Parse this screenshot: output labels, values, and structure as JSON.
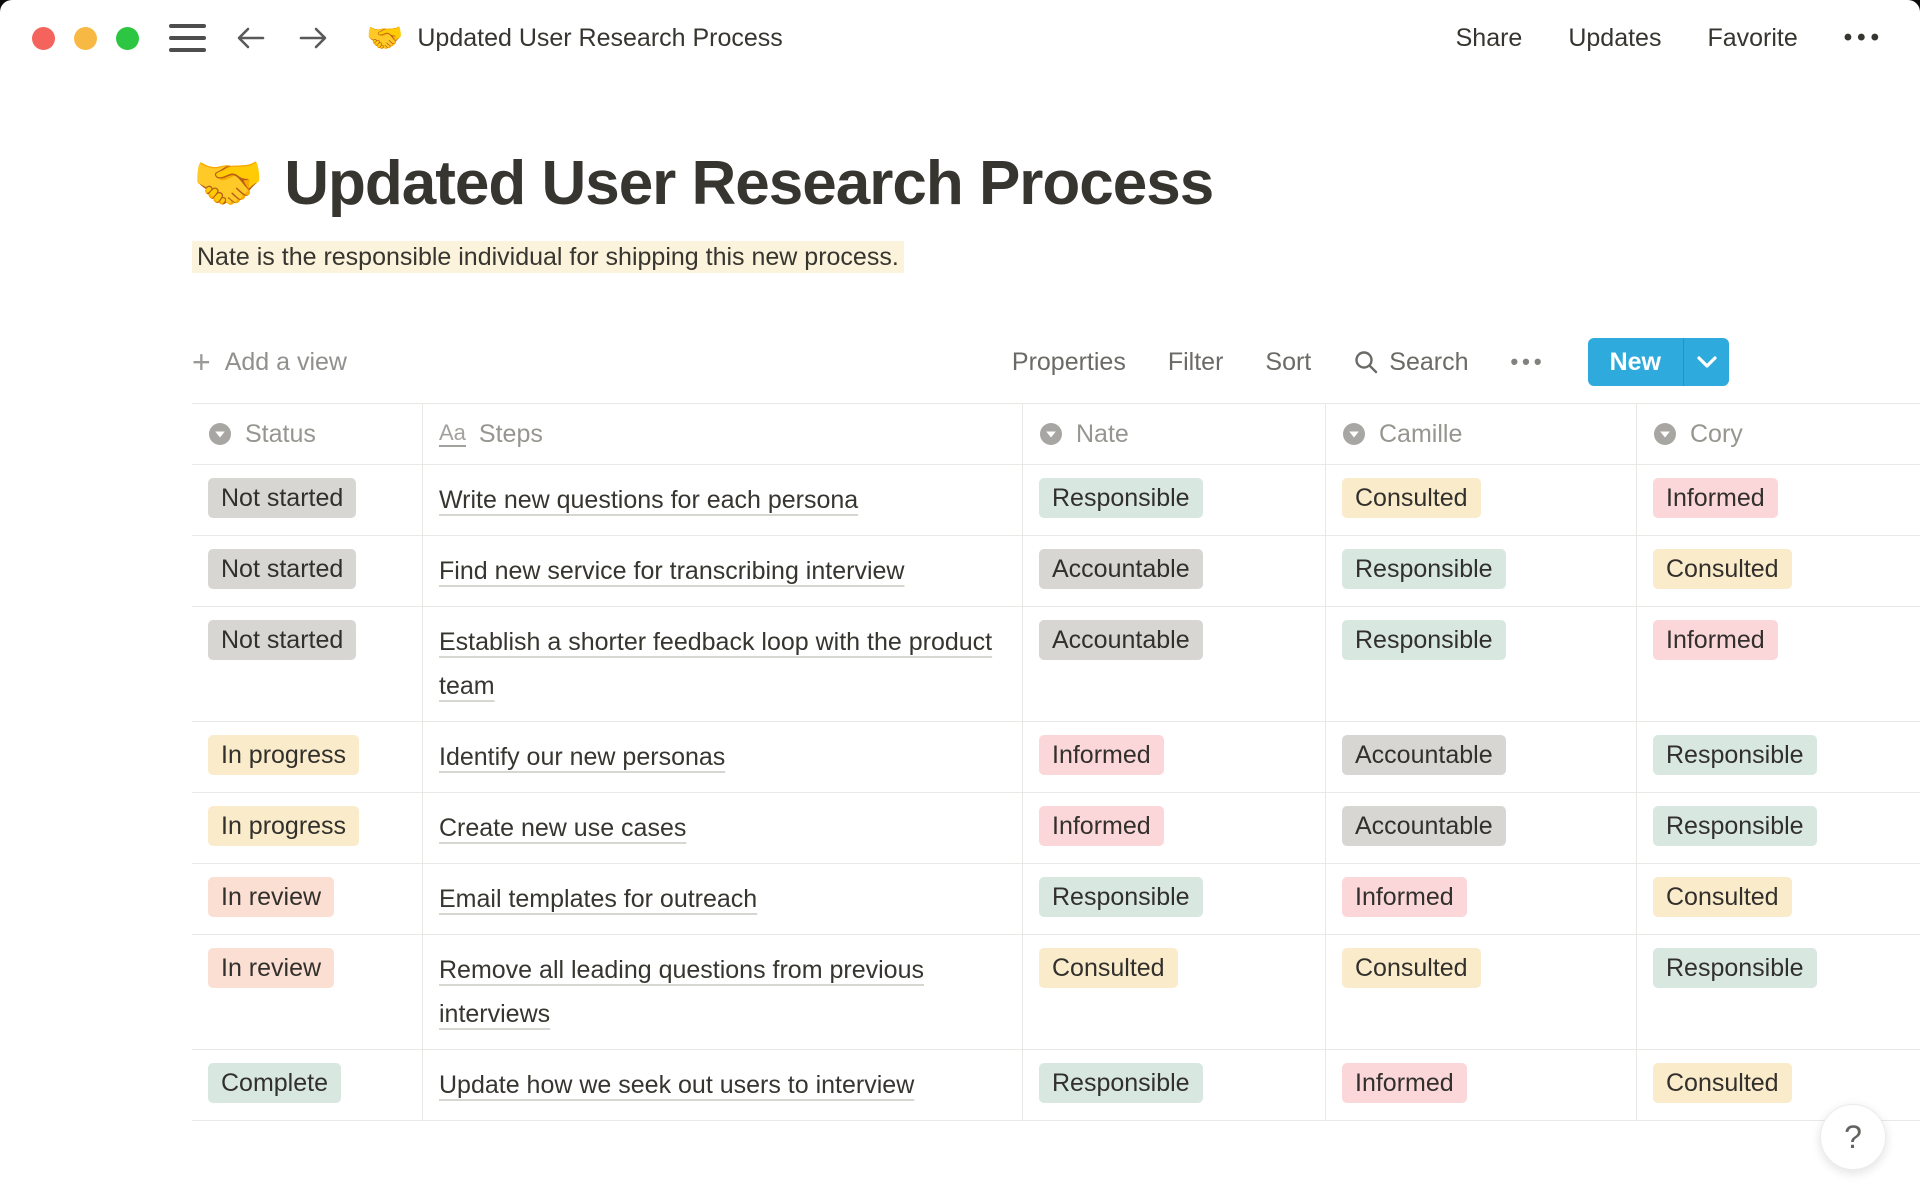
{
  "topbar": {
    "emoji": "🤝",
    "title": "Updated User Research Process",
    "actions": [
      "Share",
      "Updates",
      "Favorite"
    ],
    "more": "•••"
  },
  "page": {
    "emoji": "🤝",
    "title": "Updated User Research Process",
    "callout": "Nate is the responsible individual for shipping this new process."
  },
  "toolbar": {
    "add_view": "Add a view",
    "properties": "Properties",
    "filter": "Filter",
    "sort": "Sort",
    "search": "Search",
    "more": "•••",
    "new_label": "New"
  },
  "table": {
    "columns": [
      {
        "label": "Status",
        "icon": "select"
      },
      {
        "label": "Steps",
        "icon": "title"
      },
      {
        "label": "Nate",
        "icon": "select"
      },
      {
        "label": "Camille",
        "icon": "select"
      },
      {
        "label": "Cory",
        "icon": "select"
      }
    ],
    "rows": [
      {
        "status": "Not started",
        "step": "Write new questions for each persona",
        "cells": [
          "Responsible",
          "Consulted",
          "Informed"
        ]
      },
      {
        "status": "Not started",
        "step": "Find new service for transcribing interview",
        "cells": [
          "Accountable",
          "Responsible",
          "Consulted"
        ]
      },
      {
        "status": "Not started",
        "step": "Establish a shorter feedback loop with the product team",
        "cells": [
          "Accountable",
          "Responsible",
          "Informed"
        ]
      },
      {
        "status": "In progress",
        "step": "Identify our new personas",
        "cells": [
          "Informed",
          "Accountable",
          "Responsible"
        ]
      },
      {
        "status": "In progress",
        "step": "Create new use cases",
        "cells": [
          "Informed",
          "Accountable",
          "Responsible"
        ]
      },
      {
        "status": "In review",
        "step": "Email templates for outreach",
        "cells": [
          "Responsible",
          "Informed",
          "Consulted"
        ]
      },
      {
        "status": "In review",
        "step": "Remove all leading questions from previous interviews",
        "cells": [
          "Consulted",
          "Consulted",
          "Responsible"
        ]
      },
      {
        "status": "Complete",
        "step": "Update how we seek out users to interview",
        "cells": [
          "Responsible",
          "Informed",
          "Consulted"
        ]
      }
    ]
  },
  "badge_colors": {
    "Not started": "gray",
    "In progress": "yellow",
    "In review": "salmon",
    "Complete": "green",
    "Responsible": "green",
    "Accountable": "gray",
    "Consulted": "yellow",
    "Informed": "pink"
  },
  "colors": {
    "gray": "#D7D6D3",
    "yellow": "#FAEBCB",
    "green": "#D8E8E0",
    "pink": "#FBD7DA",
    "salmon": "#FBDFD3",
    "highlight": "#FBF3DB",
    "accent_blue": "#2EAADC",
    "badge_text": "#32302C"
  },
  "help": {
    "label": "?"
  }
}
